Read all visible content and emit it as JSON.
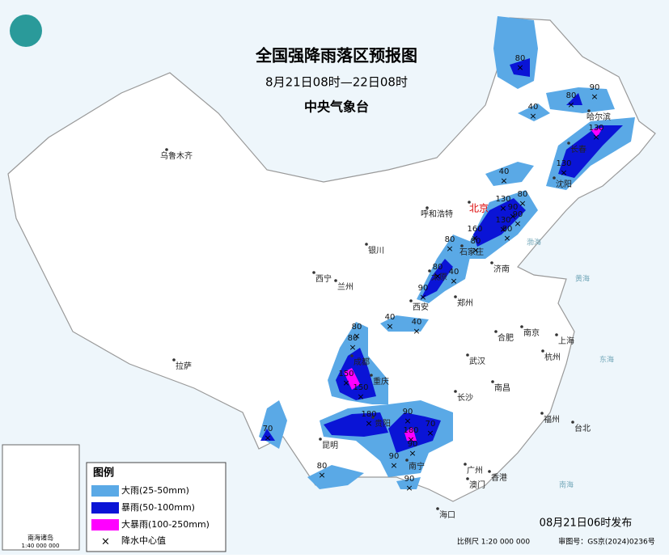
{
  "header": {
    "title": "全国强降雨落区预报图",
    "period": "8月21日08时—22日08时",
    "agency": "中央气象台"
  },
  "cities": [
    "乌鲁木齐",
    "呼和浩特",
    "北京",
    "哈尔滨",
    "长春",
    "沈阳",
    "银川",
    "太原",
    "石家庄",
    "济南",
    "西宁",
    "兰州",
    "西安",
    "郑州",
    "拉萨",
    "成都",
    "重庆",
    "武汉",
    "合肥",
    "南京",
    "上海",
    "杭州",
    "长沙",
    "南昌",
    "贵阳",
    "昆明",
    "福州",
    "台北",
    "南宁",
    "广州",
    "香港",
    "澳门",
    "海口"
  ],
  "seas": [
    "渤海",
    "黄海",
    "东海",
    "南海"
  ],
  "centers": [
    80,
    90,
    80,
    40,
    130,
    130,
    40,
    80,
    130,
    90,
    90,
    130,
    160,
    80,
    80,
    80,
    80,
    40,
    90,
    40,
    40,
    80,
    80,
    150,
    150,
    180,
    90,
    180,
    70,
    90,
    90,
    70,
    80,
    90
  ],
  "legend": {
    "title": "图例",
    "items": [
      "大雨(25-50mm)",
      "暴雨(50-100mm)",
      "大暴雨(100-250mm)",
      "降水中心值"
    ]
  },
  "inset": {
    "label": "南海诸岛",
    "scale": "1:40 000 000"
  },
  "footer": {
    "issued": "08月21日06时发布",
    "scale": "比例尺 1:20 000 000",
    "review": "审图号：GS京(2024)0236号"
  }
}
